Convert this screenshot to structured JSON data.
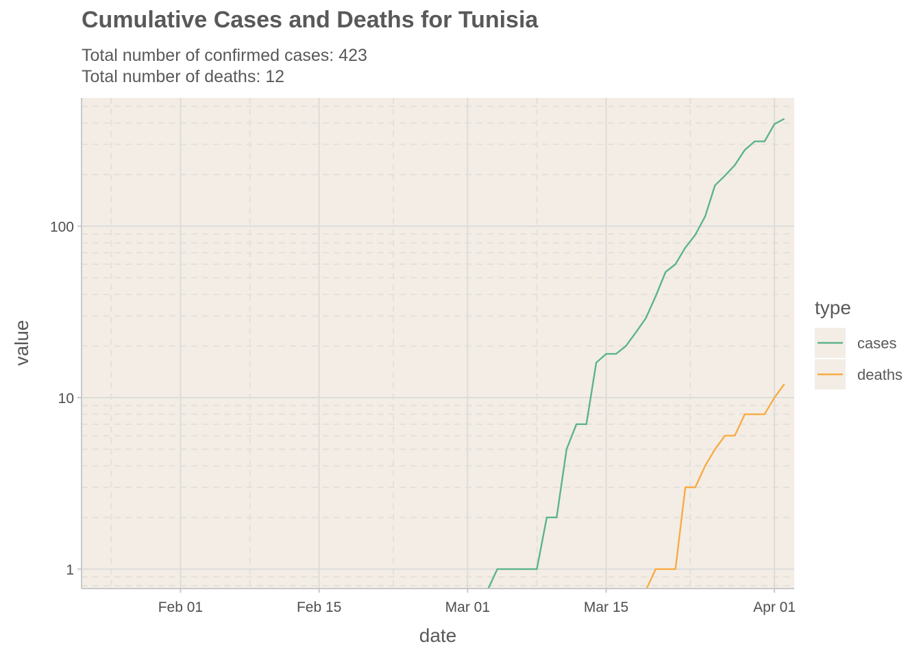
{
  "chart_data": {
    "type": "line",
    "title": "Cumulative Cases and Deaths for Tunisia",
    "subtitle_lines": [
      "Total number of confirmed cases: 423",
      "Total number of deaths: 12"
    ],
    "xlabel": "date",
    "ylabel": "value",
    "x_scale": "date",
    "y_scale": "log10",
    "xlim": [
      "2020-01-22",
      "2020-04-03"
    ],
    "ylim": [
      0.77,
      560
    ],
    "x_ticks": [
      {
        "date": "2020-02-01",
        "label": "Feb 01"
      },
      {
        "date": "2020-02-15",
        "label": "Feb 15"
      },
      {
        "date": "2020-03-01",
        "label": "Mar 01"
      },
      {
        "date": "2020-03-15",
        "label": "Mar 15"
      },
      {
        "date": "2020-04-01",
        "label": "Apr 01"
      }
    ],
    "y_ticks": [
      {
        "value": 1,
        "label": "1"
      },
      {
        "value": 10,
        "label": "10"
      },
      {
        "value": 100,
        "label": "100"
      }
    ],
    "grid": true,
    "legend": {
      "title": "type",
      "position": "right"
    },
    "series": [
      {
        "name": "cases",
        "color": "#5cb38c",
        "points": [
          [
            "2020-03-02",
            0
          ],
          [
            "2020-03-03",
            0.75
          ],
          [
            "2020-03-04",
            1
          ],
          [
            "2020-03-05",
            1
          ],
          [
            "2020-03-06",
            1
          ],
          [
            "2020-03-07",
            1
          ],
          [
            "2020-03-08",
            1
          ],
          [
            "2020-03-09",
            2
          ],
          [
            "2020-03-10",
            2
          ],
          [
            "2020-03-11",
            5
          ],
          [
            "2020-03-12",
            7
          ],
          [
            "2020-03-13",
            7
          ],
          [
            "2020-03-14",
            16
          ],
          [
            "2020-03-15",
            18
          ],
          [
            "2020-03-16",
            18
          ],
          [
            "2020-03-17",
            20
          ],
          [
            "2020-03-18",
            24
          ],
          [
            "2020-03-19",
            29
          ],
          [
            "2020-03-20",
            39
          ],
          [
            "2020-03-21",
            54
          ],
          [
            "2020-03-22",
            60
          ],
          [
            "2020-03-23",
            75
          ],
          [
            "2020-03-24",
            89
          ],
          [
            "2020-03-25",
            114
          ],
          [
            "2020-03-26",
            173
          ],
          [
            "2020-03-27",
            197
          ],
          [
            "2020-03-28",
            227
          ],
          [
            "2020-03-29",
            278
          ],
          [
            "2020-03-30",
            312
          ],
          [
            "2020-03-31",
            312
          ],
          [
            "2020-04-01",
            394
          ],
          [
            "2020-04-02",
            423
          ]
        ]
      },
      {
        "name": "deaths",
        "color": "#f8ab42",
        "points": [
          [
            "2020-03-18",
            0
          ],
          [
            "2020-03-19",
            0.75
          ],
          [
            "2020-03-20",
            1
          ],
          [
            "2020-03-21",
            1
          ],
          [
            "2020-03-22",
            1
          ],
          [
            "2020-03-23",
            3
          ],
          [
            "2020-03-24",
            3
          ],
          [
            "2020-03-25",
            4
          ],
          [
            "2020-03-26",
            5
          ],
          [
            "2020-03-27",
            6
          ],
          [
            "2020-03-28",
            6
          ],
          [
            "2020-03-29",
            8
          ],
          [
            "2020-03-30",
            8
          ],
          [
            "2020-03-31",
            8
          ],
          [
            "2020-04-01",
            10
          ],
          [
            "2020-04-02",
            12
          ]
        ]
      }
    ],
    "colors": {
      "panel_background": "#f3ede5",
      "major_grid": "#dcdcdc",
      "minor_grid": "#e4e0db"
    }
  }
}
